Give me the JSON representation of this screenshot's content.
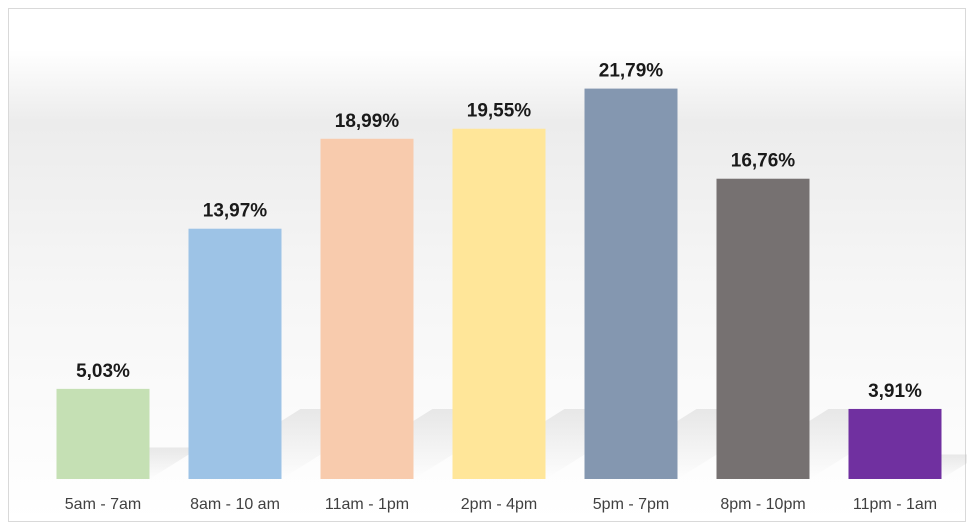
{
  "chart_data": {
    "type": "bar",
    "title": "",
    "xlabel": "",
    "ylabel": "",
    "categories": [
      "5am - 7am",
      "8am - 10 am",
      "11am - 1pm",
      "2pm - 4pm",
      "5pm - 7pm",
      "8pm - 10pm",
      "11pm - 1am"
    ],
    "values": [
      5.03,
      13.97,
      18.99,
      19.55,
      21.79,
      16.76,
      3.91
    ],
    "value_labels": [
      "5,03%",
      "13,97%",
      "18,99%",
      "19,55%",
      "21,79%",
      "16,76%",
      "3,91%"
    ],
    "colors": [
      "#c5e0b4",
      "#9dc3e6",
      "#f8cbad",
      "#ffe699",
      "#8497b0",
      "#767171",
      "#7030a0"
    ],
    "ylim": [
      0,
      24
    ],
    "grid": false,
    "legend": "none"
  }
}
